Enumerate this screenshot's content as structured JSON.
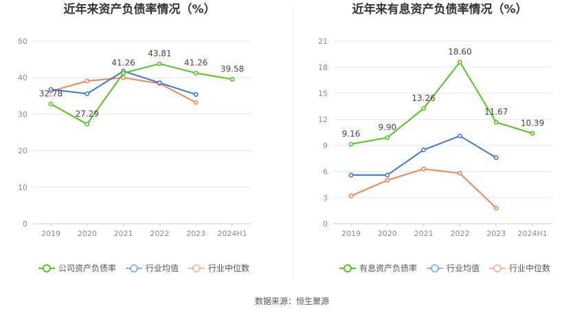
{
  "source": "数据来源：恒生聚源",
  "colors": {
    "company": "#52c41a",
    "avg": "#3a76d8",
    "median": "#f08258"
  },
  "chart_data": [
    {
      "type": "line",
      "title": "近年来资产负债率情况（%）",
      "categories": [
        "2019",
        "2020",
        "2021",
        "2022",
        "2023",
        "2024H1"
      ],
      "ylim": [
        0,
        50
      ],
      "yticks": [
        0,
        10,
        20,
        30,
        40,
        50
      ],
      "grid": true,
      "legend_position": "bottom",
      "series": [
        {
          "name": "公司资产负债率",
          "color_key": "company",
          "values": [
            32.78,
            27.29,
            41.26,
            43.81,
            41.26,
            39.58
          ],
          "labels": [
            "32.78",
            "27.29",
            "41.26",
            "43.81",
            "41.26",
            "39.58"
          ]
        },
        {
          "name": "行业均值",
          "color_key": "avg",
          "values": [
            36.8,
            35.6,
            41.8,
            38.6,
            35.4,
            null
          ]
        },
        {
          "name": "行业中位数",
          "color_key": "median",
          "values": [
            36.3,
            39.1,
            40.0,
            38.4,
            33.2,
            null
          ]
        }
      ]
    },
    {
      "type": "line",
      "title": "近年来有息资产负债率情况（%）",
      "categories": [
        "2019",
        "2020",
        "2021",
        "2022",
        "2023",
        "2024H1"
      ],
      "ylim": [
        0,
        21
      ],
      "yticks": [
        0,
        3,
        6,
        9,
        12,
        15,
        18,
        21
      ],
      "grid": true,
      "legend_position": "bottom",
      "series": [
        {
          "name": "有息资产负债率",
          "color_key": "company",
          "values": [
            9.16,
            9.9,
            13.26,
            18.6,
            11.67,
            10.39
          ],
          "labels": [
            "9.16",
            "9.90",
            "13.26",
            "18.60",
            "11.67",
            "10.39"
          ]
        },
        {
          "name": "行业均值",
          "color_key": "avg",
          "values": [
            5.6,
            5.6,
            8.5,
            10.1,
            7.6,
            null
          ]
        },
        {
          "name": "行业中位数",
          "color_key": "median",
          "values": [
            3.2,
            5.0,
            6.3,
            5.8,
            1.8,
            null
          ]
        }
      ]
    }
  ]
}
